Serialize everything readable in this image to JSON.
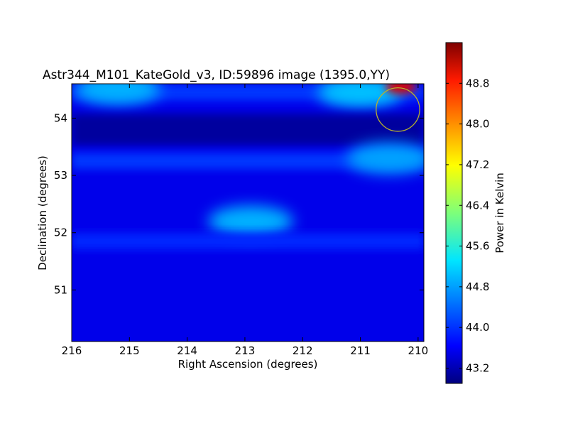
{
  "chart_data": {
    "type": "heatmap",
    "title": "Astr344_M101_KateGold_v3, ID:59896 image (1395.0,YY)",
    "xlabel": "Right Ascension (degrees)",
    "ylabel": "Declination (degrees)",
    "xlim": [
      216,
      209.9
    ],
    "ylim": [
      50.1,
      54.6
    ],
    "x_inverted": true,
    "x_ticks": [
      216,
      215,
      214,
      213,
      212,
      211,
      210
    ],
    "y_ticks": [
      51,
      52,
      53,
      54
    ],
    "colorbar": {
      "label": "Power in Kelvin",
      "range": [
        42.9,
        49.6
      ],
      "ticks": [
        43.2,
        44.0,
        44.8,
        45.6,
        46.4,
        47.2,
        48.0,
        48.8
      ],
      "colormap": "jet"
    },
    "background_level": 43.6,
    "features": [
      {
        "kind": "band",
        "dec": 54.45,
        "ra_from": 216.0,
        "ra_to": 209.9,
        "level": 44.1
      },
      {
        "kind": "blob",
        "ra": 215.2,
        "dec": 54.5,
        "level": 44.9
      },
      {
        "kind": "blob",
        "ra": 211.0,
        "dec": 54.45,
        "level": 45.0
      },
      {
        "kind": "blob",
        "ra": 210.3,
        "dec": 54.55,
        "level": 49.0
      },
      {
        "kind": "trough",
        "dec": 53.8,
        "ra_from": 216.0,
        "ra_to": 209.9,
        "level": 43.1
      },
      {
        "kind": "band",
        "dec": 53.25,
        "ra_from": 216.0,
        "ra_to": 209.9,
        "level": 44.1
      },
      {
        "kind": "blob",
        "ra": 210.5,
        "dec": 53.3,
        "level": 44.8
      },
      {
        "kind": "blob",
        "ra": 212.9,
        "dec": 52.2,
        "level": 44.9
      },
      {
        "kind": "band",
        "dec": 51.85,
        "ra_from": 216.0,
        "ra_to": 209.9,
        "level": 44.0
      }
    ],
    "annotation": {
      "shape": "circle",
      "ra": 210.35,
      "dec": 54.15,
      "radius_deg": 0.38,
      "color": "#b5b12e"
    }
  }
}
